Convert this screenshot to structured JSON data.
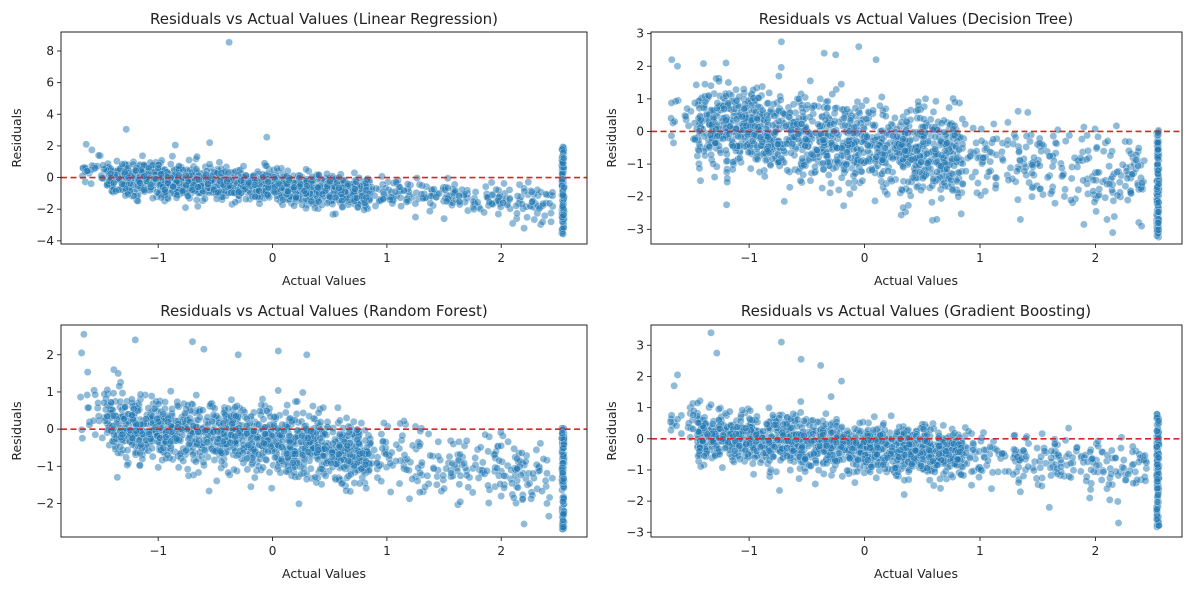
{
  "chart_data": [
    {
      "type": "scatter",
      "title": "Residuals vs Actual Values (Linear Regression)",
      "xlabel": "Actual Values",
      "ylabel": "Residuals",
      "xlim": [
        -1.85,
        2.75
      ],
      "ylim": [
        -4.2,
        9.2
      ],
      "xticks": [
        -1,
        0,
        1,
        2
      ],
      "yticks": [
        -4,
        -2,
        0,
        2,
        4,
        6,
        8
      ],
      "reference_line": {
        "y": 0,
        "color": "#d62728",
        "style": "dashed"
      },
      "point_color": "#1f77b4",
      "band": {
        "slope": -0.45,
        "offset": 0.0,
        "spread": 0.5
      },
      "extra_points": [
        [
          -1.63,
          2.1
        ],
        [
          -1.58,
          1.75
        ],
        [
          -1.52,
          1.4
        ],
        [
          -1.28,
          3.05
        ],
        [
          -0.38,
          8.55
        ],
        [
          -0.05,
          2.55
        ],
        [
          -0.55,
          2.2
        ],
        [
          -0.85,
          2.05
        ],
        [
          0.55,
          -2.3
        ],
        [
          1.25,
          -2.5
        ],
        [
          1.5,
          -2.6
        ],
        [
          2.1,
          -2.9
        ],
        [
          2.2,
          -3.2
        ],
        [
          0.9,
          -1.8
        ],
        [
          1.85,
          -2.2
        ]
      ],
      "edge_column": {
        "x": 2.54,
        "min": -3.6,
        "max": 2.0
      }
    },
    {
      "type": "scatter",
      "title": "Residuals vs Actual Values (Decision Tree)",
      "xlabel": "Actual Values",
      "ylabel": "Residuals",
      "xlim": [
        -1.85,
        2.75
      ],
      "ylim": [
        -3.45,
        3.05
      ],
      "xticks": [
        -1,
        0,
        1,
        2
      ],
      "yticks": [
        -3,
        -2,
        -1,
        0,
        1,
        2,
        3
      ],
      "reference_line": {
        "y": 0,
        "color": "#d62728",
        "style": "dashed"
      },
      "point_color": "#1f77b4",
      "band": {
        "slope": -0.5,
        "offset": 0.25,
        "spread": 0.65
      },
      "extra_points": [
        [
          -1.67,
          2.2
        ],
        [
          -1.62,
          2.0
        ],
        [
          -0.72,
          2.75
        ],
        [
          -0.35,
          2.4
        ],
        [
          -0.05,
          2.6
        ],
        [
          -1.2,
          2.1
        ],
        [
          -0.25,
          2.35
        ],
        [
          0.1,
          2.2
        ],
        [
          1.35,
          -2.7
        ],
        [
          1.9,
          -2.85
        ],
        [
          2.15,
          -3.1
        ],
        [
          2.4,
          -2.9
        ],
        [
          2.1,
          -2.7
        ],
        [
          1.65,
          -2.2
        ],
        [
          0.85,
          -1.6
        ]
      ],
      "edge_column": {
        "x": 2.54,
        "min": -3.25,
        "max": 0.05
      }
    },
    {
      "type": "scatter",
      "title": "Residuals vs Actual Values (Random Forest)",
      "xlabel": "Actual Values",
      "ylabel": "Residuals",
      "xlim": [
        -1.85,
        2.75
      ],
      "ylim": [
        -2.9,
        2.8
      ],
      "xticks": [
        -1,
        0,
        1,
        2
      ],
      "yticks": [
        -2,
        -1,
        0,
        1,
        2
      ],
      "reference_line": {
        "y": 0,
        "color": "#d62728",
        "style": "dashed"
      },
      "point_color": "#1f77b4",
      "band": {
        "slope": -0.4,
        "offset": 0.15,
        "spread": 0.45
      },
      "extra_points": [
        [
          -1.65,
          2.55
        ],
        [
          -1.67,
          2.05
        ],
        [
          -1.2,
          2.4
        ],
        [
          -0.7,
          2.35
        ],
        [
          -0.6,
          2.15
        ],
        [
          -0.3,
          2.0
        ],
        [
          0.05,
          2.1
        ],
        [
          0.3,
          2.0
        ],
        [
          -1.35,
          1.5
        ],
        [
          2.2,
          -2.55
        ],
        [
          2.4,
          -2.0
        ],
        [
          1.5,
          -1.6
        ],
        [
          1.75,
          -1.7
        ],
        [
          0.95,
          -1.4
        ],
        [
          2.0,
          -1.8
        ]
      ],
      "edge_column": {
        "x": 2.54,
        "min": -2.7,
        "max": 0.05
      }
    },
    {
      "type": "scatter",
      "title": "Residuals vs Actual Values (Gradient Boosting)",
      "xlabel": "Actual Values",
      "ylabel": "Residuals",
      "xlim": [
        -1.85,
        2.75
      ],
      "ylim": [
        -3.15,
        3.65
      ],
      "xticks": [
        -1,
        0,
        1,
        2
      ],
      "yticks": [
        -3,
        -2,
        -1,
        0,
        1,
        2,
        3
      ],
      "reference_line": {
        "y": 0,
        "color": "#d62728",
        "style": "dashed"
      },
      "point_color": "#1f77b4",
      "band": {
        "slope": -0.3,
        "offset": 0.1,
        "spread": 0.42
      },
      "extra_points": [
        [
          -1.33,
          3.4
        ],
        [
          -1.28,
          2.75
        ],
        [
          -0.72,
          3.1
        ],
        [
          -0.55,
          2.55
        ],
        [
          -0.38,
          2.35
        ],
        [
          -0.2,
          1.85
        ],
        [
          -1.65,
          1.7
        ],
        [
          -1.62,
          2.05
        ],
        [
          2.2,
          -2.7
        ],
        [
          1.6,
          -2.2
        ],
        [
          1.95,
          -1.9
        ],
        [
          1.1,
          -1.6
        ],
        [
          0.6,
          -1.5
        ],
        [
          1.35,
          -1.7
        ],
        [
          2.1,
          -1.6
        ]
      ],
      "edge_column": {
        "x": 2.54,
        "min": -2.85,
        "max": 0.8
      }
    }
  ]
}
